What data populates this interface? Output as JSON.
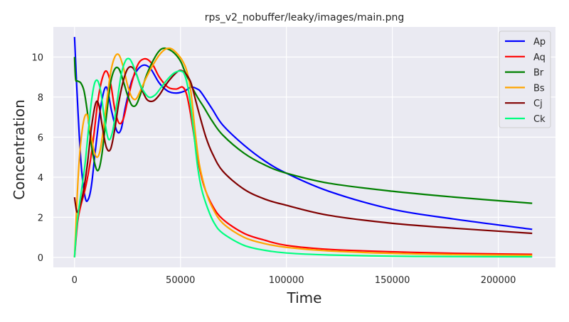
{
  "chart_data": {
    "type": "line",
    "title": "rps_v2_nobuffer/leaky/images/main.png",
    "xlabel": "Time",
    "ylabel": "Concentration",
    "xlim": [
      -10000,
      227000
    ],
    "ylim": [
      -0.5,
      11.5
    ],
    "xticks": [
      0,
      50000,
      100000,
      150000,
      200000
    ],
    "xtick_labels": [
      "0",
      "50000",
      "100000",
      "150000",
      "200000"
    ],
    "yticks": [
      0,
      2,
      4,
      6,
      8,
      10
    ],
    "ytick_labels": [
      "0",
      "2",
      "4",
      "6",
      "8",
      "10"
    ],
    "grid": true,
    "legend_position": "top-right",
    "background": "#eaeaf2",
    "series": [
      {
        "name": "Ap",
        "color": "#0000ff",
        "x": [
          0,
          1000,
          3000,
          5000,
          6500,
          8000,
          10000,
          12500,
          15000,
          17500,
          20000,
          22000,
          24000,
          27000,
          30000,
          33000,
          36000,
          40000,
          44000,
          48000,
          52000,
          55000,
          58000,
          60000,
          65000,
          70000,
          80000,
          90000,
          100000,
          120000,
          150000,
          180000,
          216000
        ],
        "y": [
          11.0,
          8.6,
          4.8,
          3.0,
          2.9,
          3.6,
          5.5,
          7.6,
          8.5,
          7.3,
          6.3,
          6.4,
          7.5,
          8.8,
          9.4,
          9.6,
          9.4,
          8.7,
          8.3,
          8.2,
          8.3,
          8.5,
          8.4,
          8.2,
          7.4,
          6.6,
          5.6,
          4.8,
          4.2,
          3.3,
          2.4,
          1.9,
          1.4
        ]
      },
      {
        "name": "Aq",
        "color": "#ff0000",
        "x": [
          0,
          1500,
          3000,
          5000,
          7000,
          9000,
          11000,
          13000,
          15000,
          17000,
          19000,
          21000,
          23000,
          25000,
          27000,
          29000,
          31000,
          34000,
          37000,
          40000,
          44000,
          48000,
          51000,
          53000,
          55000,
          58000,
          61000,
          65000,
          70000,
          80000,
          90000,
          100000,
          120000,
          150000,
          180000,
          216000
        ],
        "y": [
          0.0,
          1.8,
          2.6,
          3.4,
          4.5,
          6.0,
          7.8,
          8.9,
          9.3,
          8.7,
          7.4,
          6.7,
          6.9,
          7.8,
          8.7,
          9.4,
          9.8,
          9.9,
          9.6,
          9.0,
          8.5,
          8.4,
          8.5,
          8.1,
          7.0,
          5.0,
          3.6,
          2.6,
          1.9,
          1.2,
          0.85,
          0.6,
          0.4,
          0.28,
          0.2,
          0.15
        ]
      },
      {
        "name": "Br",
        "color": "#008000",
        "x": [
          0,
          500,
          1500,
          3000,
          4500,
          6000,
          8000,
          10000,
          11500,
          13000,
          15000,
          17000,
          19000,
          21000,
          23000,
          25000,
          27000,
          29000,
          31000,
          34000,
          38000,
          41000,
          44000,
          47000,
          50000,
          52000,
          55000,
          58000,
          61000,
          65000,
          70000,
          80000,
          90000,
          100000,
          120000,
          150000,
          180000,
          216000
        ],
        "y": [
          10.0,
          8.9,
          8.8,
          8.7,
          8.3,
          7.3,
          5.6,
          4.5,
          4.4,
          5.2,
          7.0,
          8.7,
          9.4,
          9.4,
          8.8,
          8.1,
          7.6,
          7.6,
          8.1,
          9.1,
          10.0,
          10.4,
          10.4,
          10.2,
          9.8,
          9.3,
          8.6,
          8.0,
          7.5,
          6.8,
          6.1,
          5.2,
          4.6,
          4.2,
          3.7,
          3.3,
          3.0,
          2.7
        ]
      },
      {
        "name": "Bs",
        "color": "#ffa500",
        "x": [
          0,
          1000,
          2000,
          3000,
          4500,
          6000,
          7500,
          9000,
          10500,
          12000,
          13500,
          15000,
          17000,
          19000,
          21000,
          23000,
          25000,
          27000,
          29000,
          31000,
          34000,
          37000,
          40000,
          43000,
          46000,
          49000,
          51000,
          53000,
          55000,
          57000,
          59000,
          62000,
          65000,
          70000,
          80000,
          90000,
          100000,
          120000,
          150000,
          180000,
          216000
        ],
        "y": [
          0.0,
          2.5,
          4.5,
          5.8,
          6.9,
          7.1,
          6.3,
          5.4,
          5.0,
          5.3,
          6.3,
          7.6,
          9.2,
          10.0,
          10.1,
          9.5,
          8.6,
          8.0,
          7.9,
          8.3,
          9.0,
          9.6,
          10.1,
          10.4,
          10.4,
          10.1,
          9.8,
          9.3,
          8.2,
          6.2,
          4.6,
          3.3,
          2.5,
          1.7,
          1.0,
          0.68,
          0.5,
          0.32,
          0.2,
          0.14,
          0.1
        ]
      },
      {
        "name": "Cj",
        "color": "#800000",
        "x": [
          0,
          1000,
          2000,
          4000,
          6000,
          8000,
          10000,
          11500,
          13000,
          15000,
          17000,
          19000,
          21000,
          23000,
          25000,
          27000,
          29000,
          31000,
          34000,
          37000,
          40000,
          43000,
          46000,
          49000,
          51000,
          53000,
          55000,
          57000,
          59000,
          62000,
          65000,
          70000,
          80000,
          90000,
          100000,
          120000,
          150000,
          180000,
          216000
        ],
        "y": [
          3.0,
          2.3,
          2.4,
          3.2,
          4.6,
          6.5,
          7.7,
          7.6,
          6.6,
          5.5,
          5.4,
          6.4,
          7.8,
          8.8,
          9.4,
          9.5,
          9.2,
          8.6,
          7.9,
          7.8,
          8.1,
          8.6,
          9.0,
          9.3,
          9.3,
          9.1,
          8.7,
          7.9,
          7.1,
          6.0,
          5.2,
          4.3,
          3.4,
          2.9,
          2.6,
          2.1,
          1.7,
          1.45,
          1.2
        ]
      },
      {
        "name": "Ck",
        "color": "#00ff7f",
        "x": [
          0,
          1000,
          2000,
          3500,
          5000,
          6500,
          8000,
          9500,
          11000,
          12500,
          14000,
          16000,
          18000,
          20000,
          22000,
          24000,
          26000,
          28000,
          30000,
          32000,
          35000,
          38000,
          41000,
          44000,
          47000,
          50000,
          52000,
          54000,
          56000,
          58000,
          60000,
          63000,
          66000,
          70000,
          80000,
          90000,
          100000,
          120000,
          150000,
          180000,
          216000
        ],
        "y": [
          0.0,
          1.5,
          2.4,
          3.5,
          4.7,
          6.3,
          7.8,
          8.7,
          8.8,
          8.2,
          7.0,
          5.9,
          6.3,
          7.7,
          9.1,
          9.8,
          9.9,
          9.5,
          8.9,
          8.4,
          8.0,
          8.1,
          8.5,
          8.9,
          9.2,
          9.3,
          9.1,
          8.2,
          6.5,
          4.6,
          3.4,
          2.4,
          1.7,
          1.2,
          0.6,
          0.35,
          0.22,
          0.12,
          0.06,
          0.04,
          0.03
        ]
      }
    ]
  }
}
